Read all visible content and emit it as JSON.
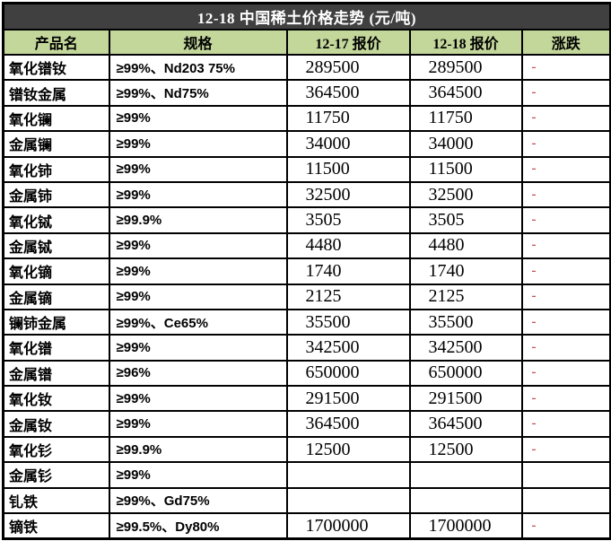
{
  "title": "12-18 中国稀土价格走势 (元/吨)",
  "colors": {
    "title_bg": "#404040",
    "title_fg": "#ffffff",
    "header_bg": "#c4d79b",
    "border_color": "#000000",
    "change_red": "#c0504d",
    "cell_bg": "#ffffff"
  },
  "table": {
    "columns": [
      "产品名",
      "规格",
      "12-17 报价",
      "12-18 报价",
      "涨跌"
    ],
    "rows": [
      {
        "name": "氧化镨钕",
        "spec": "≥99%、Nd203 75%",
        "price_12_17": "289500",
        "price_12_18": "289500",
        "change": "-"
      },
      {
        "name": "镨钕金属",
        "spec": "≥99%、Nd75%",
        "price_12_17": "364500",
        "price_12_18": "364500",
        "change": "-"
      },
      {
        "name": "氧化镧",
        "spec": "≥99%",
        "price_12_17": "11750",
        "price_12_18": "11750",
        "change": "-"
      },
      {
        "name": "金属镧",
        "spec": "≥99%",
        "price_12_17": "34000",
        "price_12_18": "34000",
        "change": "-"
      },
      {
        "name": "氧化铈",
        "spec": "≥99%",
        "price_12_17": "11500",
        "price_12_18": "11500",
        "change": "-"
      },
      {
        "name": "金属铈",
        "spec": "≥99%",
        "price_12_17": "32500",
        "price_12_18": "32500",
        "change": "-"
      },
      {
        "name": "氧化铽",
        "spec": "≥99.9%",
        "price_12_17": "3505",
        "price_12_18": "3505",
        "change": "-"
      },
      {
        "name": "金属铽",
        "spec": "≥99%",
        "price_12_17": "4480",
        "price_12_18": "4480",
        "change": "-"
      },
      {
        "name": "氧化镝",
        "spec": "≥99%",
        "price_12_17": "1740",
        "price_12_18": "1740",
        "change": "-"
      },
      {
        "name": "金属镝",
        "spec": "≥99%",
        "price_12_17": "2125",
        "price_12_18": "2125",
        "change": "-"
      },
      {
        "name": "镧铈金属",
        "spec": "≥99%、Ce65%",
        "price_12_17": "35500",
        "price_12_18": "35500",
        "change": "-"
      },
      {
        "name": "氧化镨",
        "spec": "≥99%",
        "price_12_17": "342500",
        "price_12_18": "342500",
        "change": "-"
      },
      {
        "name": "金属镨",
        "spec": "≥96%",
        "price_12_17": "650000",
        "price_12_18": "650000",
        "change": "-"
      },
      {
        "name": "氧化钕",
        "spec": "≥99%",
        "price_12_17": "291500",
        "price_12_18": "291500",
        "change": "-"
      },
      {
        "name": "金属钕",
        "spec": "≥99%",
        "price_12_17": "364500",
        "price_12_18": "364500",
        "change": "-"
      },
      {
        "name": "氧化钐",
        "spec": "≥99.9%",
        "price_12_17": "12500",
        "price_12_18": "12500",
        "change": "-"
      },
      {
        "name": "金属钐",
        "spec": "≥99%",
        "price_12_17": "",
        "price_12_18": "",
        "change": ""
      },
      {
        "name": "钆铁",
        "spec": "≥99%、Gd75%",
        "price_12_17": "",
        "price_12_18": "",
        "change": ""
      },
      {
        "name": "镝铁",
        "spec": "≥99.5%、Dy80%",
        "price_12_17": "1700000",
        "price_12_18": "1700000",
        "change": "-"
      }
    ]
  }
}
